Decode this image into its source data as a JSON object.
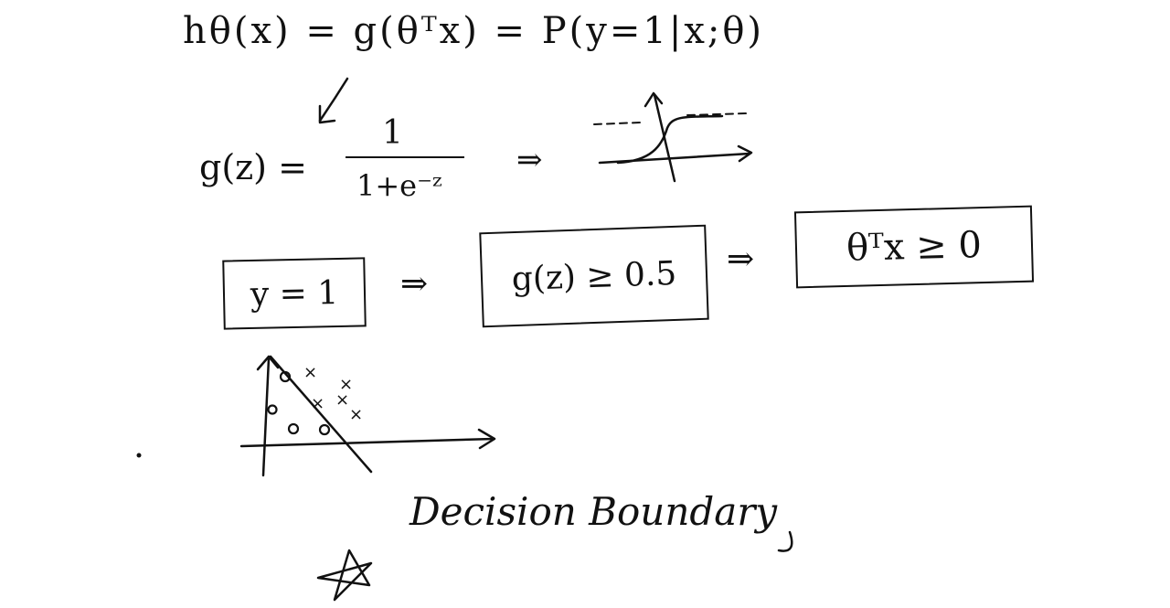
{
  "notes": {
    "hypothesis": "hθ(x) = g(θᵀx) = P(y=1|x;θ)",
    "sigmoid_lhs": "g(z) =",
    "sigmoid_numerator": "1",
    "sigmoid_denominator": "1+e⁻ᶻ",
    "implies": "⇒",
    "box_y": "y = 1",
    "box_g": "g(z) ≥ 0.5",
    "box_theta": "θᵀx ≥ 0",
    "boundary_label": "Decision Boundary",
    "cross_mark": "×",
    "circle_mark": "o"
  }
}
